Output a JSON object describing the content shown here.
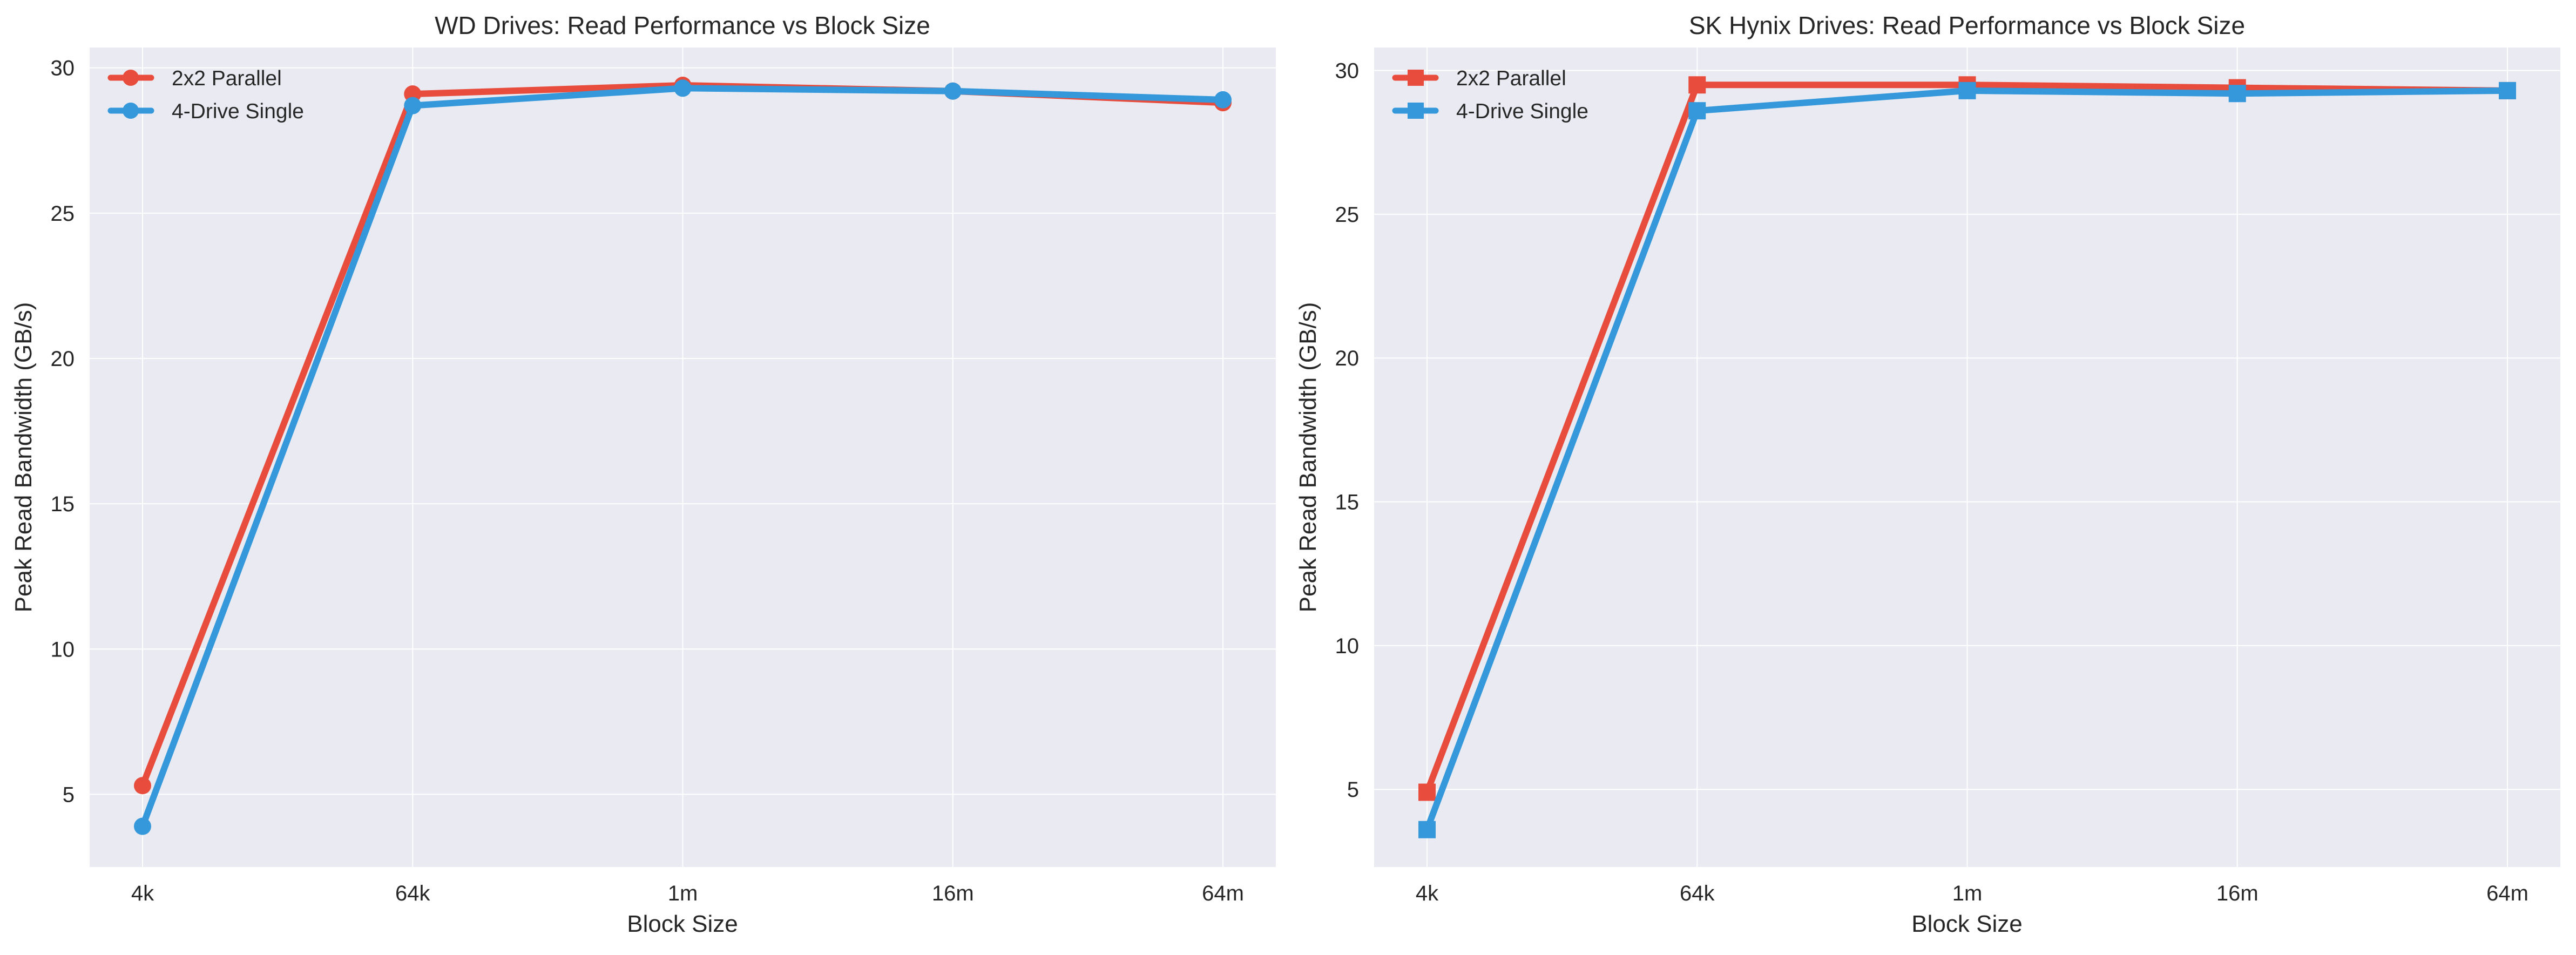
{
  "colors": {
    "panel_background": "#EAEAF2",
    "grid": "#FFFFFF",
    "series_2x2_parallel": "#E74C3C",
    "series_4_drive_single": "#3498DB"
  },
  "chart_data": [
    {
      "type": "line",
      "title": "WD Drives: Read Performance vs Block Size",
      "xlabel": "Block Size",
      "ylabel": "Peak Read Bandwidth (GB/s)",
      "categories": [
        "4k",
        "64k",
        "1m",
        "16m",
        "64m"
      ],
      "yticks": [
        "5",
        "10",
        "15",
        "20",
        "25",
        "30"
      ],
      "ylim": [
        2.5,
        30.7
      ],
      "grid": true,
      "legend_position": "top-left",
      "marker": "circle",
      "series": [
        {
          "name": "2x2 Parallel",
          "color": "#E74C3C",
          "values": [
            5.3,
            29.1,
            29.4,
            29.2,
            28.8
          ]
        },
        {
          "name": "4-Drive Single",
          "color": "#3498DB",
          "values": [
            3.9,
            28.7,
            29.3,
            29.2,
            28.9
          ]
        }
      ]
    },
    {
      "type": "line",
      "title": "SK Hynix Drives: Read Performance vs Block Size",
      "xlabel": "Block Size",
      "ylabel": "Peak Read Bandwidth (GB/s)",
      "categories": [
        "4k",
        "64k",
        "1m",
        "16m",
        "64m"
      ],
      "yticks": [
        "5",
        "10",
        "15",
        "20",
        "25",
        "30"
      ],
      "ylim": [
        2.3,
        30.8
      ],
      "grid": true,
      "legend_position": "top-left",
      "marker": "square",
      "series": [
        {
          "name": "2x2 Parallel",
          "color": "#E74C3C",
          "values": [
            4.9,
            29.5,
            29.5,
            29.4,
            29.3
          ]
        },
        {
          "name": "4-Drive Single",
          "color": "#3498DB",
          "values": [
            3.6,
            28.6,
            29.3,
            29.2,
            29.3
          ]
        }
      ]
    }
  ]
}
